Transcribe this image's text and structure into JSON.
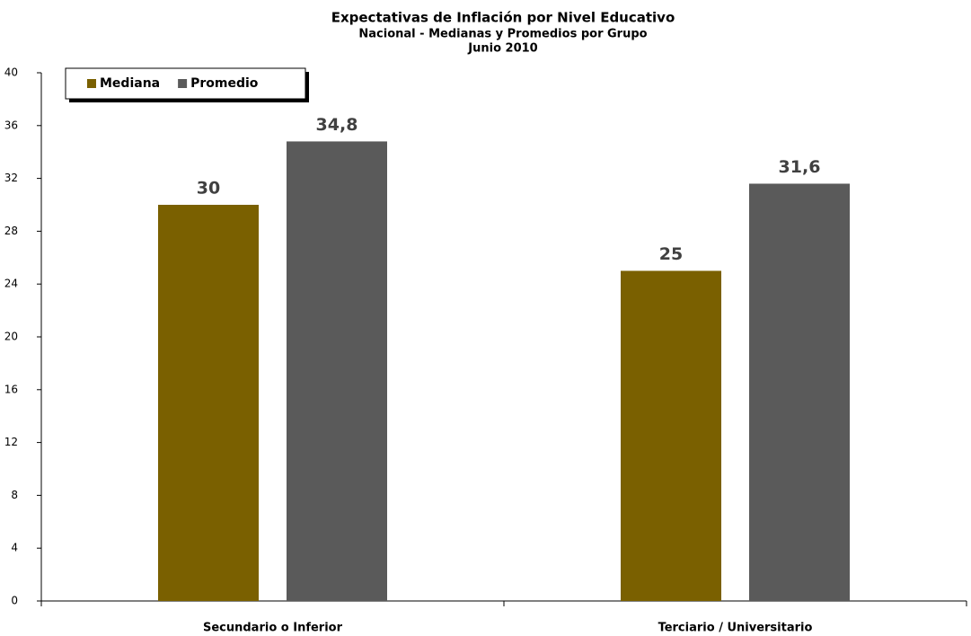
{
  "chart_data": {
    "type": "bar",
    "title": "Expectativas de Inflación por Nivel Educativo",
    "subtitle": "Nacional - Medianas y Promedios por Grupo",
    "period": "Junio 2010",
    "categories": [
      "Secundario o Inferior",
      "Terciario / Universitario"
    ],
    "series": [
      {
        "name": "Mediana",
        "color": "#7a6000",
        "values": [
          30,
          25
        ],
        "value_labels": [
          "30",
          "25"
        ]
      },
      {
        "name": "Promedio",
        "color": "#5a5a5a",
        "values": [
          34.8,
          31.6
        ],
        "value_labels": [
          "34,8",
          "31,6"
        ]
      }
    ],
    "ylim": [
      0,
      40
    ],
    "yticks": [
      0,
      4,
      8,
      12,
      16,
      20,
      24,
      28,
      32,
      36,
      40
    ],
    "grid": false,
    "legend": "top-left"
  }
}
